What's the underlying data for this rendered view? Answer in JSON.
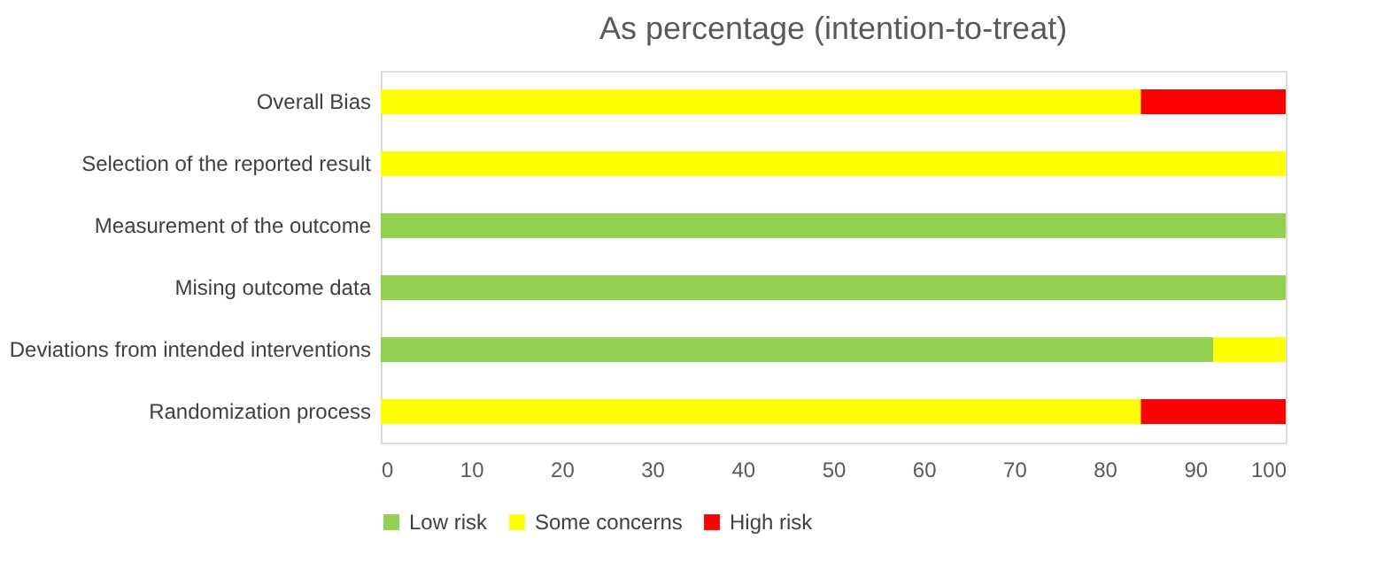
{
  "chart_data": {
    "type": "bar",
    "title": "As percentage (intention-to-treat)",
    "orientation": "horizontal",
    "stacked": true,
    "categories": [
      "Overall Bias",
      "Selection of the reported result",
      "Measurement of the outcome",
      "Mising outcome data",
      "Deviations from intended interventions",
      "Randomization process"
    ],
    "series": [
      {
        "name": "Low risk",
        "color": "#92d050",
        "values": [
          0,
          0,
          100,
          100,
          92,
          0
        ]
      },
      {
        "name": "Some concerns",
        "color": "#ffff00",
        "values": [
          84,
          100,
          0,
          0,
          8,
          84
        ]
      },
      {
        "name": "High risk",
        "color": "#ff0000",
        "values": [
          16,
          0,
          0,
          0,
          0,
          16
        ]
      }
    ],
    "xlim": [
      0,
      100
    ],
    "xticks": [
      0,
      10,
      20,
      30,
      40,
      50,
      60,
      70,
      80,
      90,
      100
    ],
    "grid": false,
    "legend": "bottom"
  }
}
